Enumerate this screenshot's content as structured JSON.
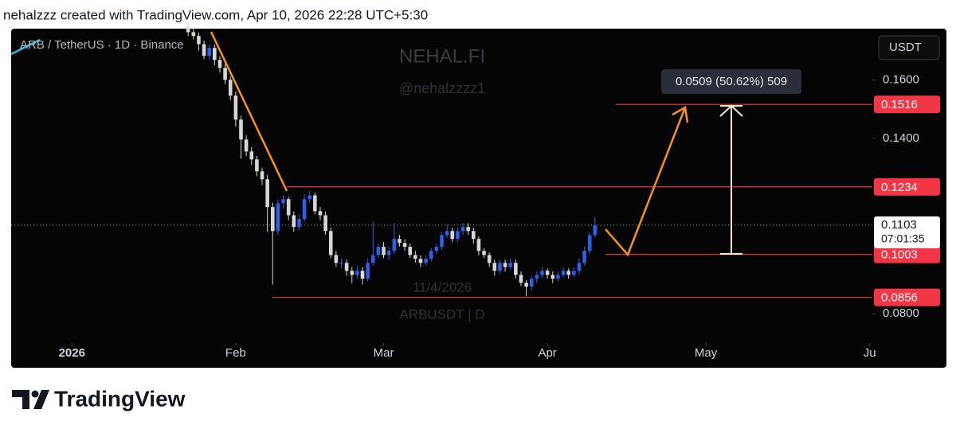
{
  "header": {
    "text": "nehalzzz created with TradingView.com, Apr 10, 2026 22:28 UTC+5:30"
  },
  "chart_data": {
    "type": "candlestick",
    "symbol_label": "ARB / TetherUS · 1D · Binance",
    "currency": "USDT",
    "watermarks": [
      "NEHAL.FI",
      "@nehalzzzz1",
      "11/4/2026",
      "ARBUSDT | D"
    ],
    "x": [
      22,
      23,
      24,
      25,
      26,
      27,
      28,
      29,
      30,
      31,
      32,
      33,
      34,
      35,
      36,
      37,
      38,
      39,
      40,
      41,
      42,
      43,
      44,
      45,
      46,
      47,
      48,
      49,
      50,
      51,
      52,
      53,
      54,
      55,
      56,
      57,
      58,
      59,
      60,
      61,
      62,
      63,
      64,
      65,
      66,
      67,
      68,
      69,
      70,
      71,
      72,
      73,
      74,
      75,
      76,
      77,
      78,
      79,
      80,
      81,
      82,
      83,
      84,
      85,
      86,
      87,
      88,
      89,
      90,
      91,
      92,
      93,
      94,
      95,
      96,
      97,
      98,
      99
    ],
    "open": [
      0.178,
      0.1763,
      0.175,
      0.1722,
      0.1682,
      0.1709,
      0.1668,
      0.1641,
      0.16,
      0.1546,
      0.1464,
      0.1396,
      0.1355,
      0.1328,
      0.1287,
      0.126,
      0.1165,
      0.1083,
      0.1178,
      0.1192,
      0.1137,
      0.1097,
      0.1124,
      0.1192,
      0.1205,
      0.1151,
      0.1137,
      0.1083,
      0.1001,
      0.0974,
      0.0974,
      0.0947,
      0.0933,
      0.0947,
      0.092,
      0.0974,
      0.1001,
      0.1029,
      0.1001,
      0.1015,
      0.1056,
      0.1042,
      0.1029,
      0.1001,
      0.0988,
      0.0974,
      0.0988,
      0.1015,
      0.1029,
      0.1069,
      0.1083,
      0.1056,
      0.1083,
      0.1097,
      0.1083,
      0.1056,
      0.1015,
      0.1001,
      0.0974,
      0.0947,
      0.0974,
      0.096,
      0.0974,
      0.0933,
      0.0906,
      0.0893,
      0.092,
      0.0933,
      0.0947,
      0.0933,
      0.092,
      0.0933,
      0.0947,
      0.0933,
      0.0947,
      0.0974,
      0.1015,
      0.1069
    ],
    "high": [
      0.1795,
      0.1775,
      0.1762,
      0.1735,
      0.1721,
      0.172,
      0.168,
      0.1655,
      0.1612,
      0.156,
      0.1478,
      0.141,
      0.137,
      0.134,
      0.13,
      0.1275,
      0.118,
      0.119,
      0.1205,
      0.12,
      0.115,
      0.114,
      0.121,
      0.122,
      0.1215,
      0.1165,
      0.115,
      0.1095,
      0.1015,
      0.099,
      0.0985,
      0.096,
      0.0965,
      0.096,
      0.099,
      0.1115,
      0.104,
      0.1045,
      0.103,
      0.111,
      0.107,
      0.1055,
      0.104,
      0.1015,
      0.1,
      0.1,
      0.1025,
      0.104,
      0.108,
      0.1105,
      0.1095,
      0.1095,
      0.111,
      0.111,
      0.1095,
      0.1065,
      0.1025,
      0.101,
      0.0985,
      0.0985,
      0.0985,
      0.099,
      0.0985,
      0.0945,
      0.0915,
      0.093,
      0.0945,
      0.096,
      0.0955,
      0.0945,
      0.0945,
      0.096,
      0.0955,
      0.096,
      0.099,
      0.103,
      0.108,
      0.113
    ],
    "low": [
      0.175,
      0.1738,
      0.17,
      0.167,
      0.167,
      0.165,
      0.1625,
      0.1585,
      0.153,
      0.144,
      0.133,
      0.134,
      0.131,
      0.127,
      0.124,
      0.108,
      0.09,
      0.107,
      0.116,
      0.112,
      0.108,
      0.1085,
      0.1115,
      0.118,
      0.114,
      0.112,
      0.107,
      0.099,
      0.096,
      0.0955,
      0.093,
      0.0905,
      0.092,
      0.09,
      0.091,
      0.0965,
      0.099,
      0.099,
      0.0985,
      0.1005,
      0.103,
      0.1015,
      0.099,
      0.0975,
      0.096,
      0.0965,
      0.098,
      0.1005,
      0.102,
      0.106,
      0.1045,
      0.1045,
      0.107,
      0.107,
      0.104,
      0.1,
      0.099,
      0.096,
      0.093,
      0.0935,
      0.0945,
      0.095,
      0.092,
      0.0895,
      0.086,
      0.088,
      0.0905,
      0.092,
      0.092,
      0.0905,
      0.091,
      0.0925,
      0.092,
      0.0925,
      0.0935,
      0.0965,
      0.1005,
      0.106
    ],
    "close": [
      0.1763,
      0.175,
      0.1722,
      0.1682,
      0.1709,
      0.1668,
      0.1641,
      0.16,
      0.1546,
      0.1464,
      0.1396,
      0.1355,
      0.1328,
      0.1287,
      0.126,
      0.1165,
      0.1083,
      0.1178,
      0.1192,
      0.1137,
      0.1097,
      0.1124,
      0.1192,
      0.1205,
      0.1151,
      0.1137,
      0.1083,
      0.1001,
      0.0974,
      0.0974,
      0.0947,
      0.0933,
      0.0947,
      0.092,
      0.0974,
      0.1001,
      0.1029,
      0.1001,
      0.1015,
      0.1056,
      0.1042,
      0.1029,
      0.1001,
      0.0988,
      0.0974,
      0.0988,
      0.1015,
      0.1029,
      0.1069,
      0.1083,
      0.1056,
      0.1083,
      0.1097,
      0.1083,
      0.1056,
      0.1015,
      0.1001,
      0.0974,
      0.0947,
      0.0974,
      0.096,
      0.0974,
      0.0933,
      0.0906,
      0.0893,
      0.092,
      0.0933,
      0.0947,
      0.0933,
      0.092,
      0.0933,
      0.0947,
      0.0933,
      0.0947,
      0.0974,
      0.1015,
      0.1069,
      0.1103
    ],
    "up_color": "#2f5fe8",
    "down_color": "#d6d6d6",
    "xlim": [
      -11.5,
      151.5
    ],
    "xticks": [
      {
        "value": 0,
        "label": "2026"
      },
      {
        "value": 31,
        "label": "Feb"
      },
      {
        "value": 59,
        "label": "Mar"
      },
      {
        "value": 90,
        "label": "Apr"
      },
      {
        "value": 120,
        "label": "May"
      },
      {
        "value": 151,
        "label": "Ju"
      }
    ],
    "ylim": [
      0.07,
      0.1775
    ],
    "yticks": [
      {
        "value": 0.16,
        "label": "0.1600"
      },
      {
        "value": 0.14,
        "label": "0.1400"
      },
      {
        "value": 0.08,
        "label": "0.0800"
      }
    ],
    "price_lines": [
      0.1516,
      0.1234,
      0.1003,
      0.0856
    ],
    "price_line_color": "#f23645",
    "current_price": 0.1103,
    "countdown": "07:01:35",
    "measure_label": "0.0509 (50.62%) 509"
  },
  "footer": {
    "brand": "TradingView"
  }
}
